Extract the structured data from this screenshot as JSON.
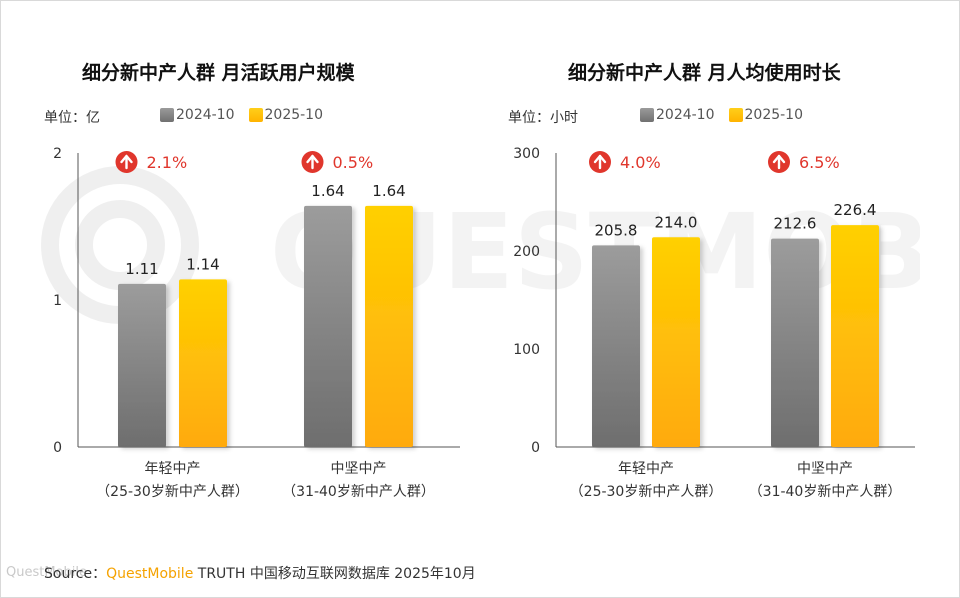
{
  "chart_data": [
    {
      "type": "bar",
      "title": "细分新中产人群 月活跃用户规模",
      "unit": "单位：亿",
      "ylim": [
        0,
        2
      ],
      "yticks": [
        "0",
        "1",
        "2"
      ],
      "categories": [
        {
          "line1": "年轻中产",
          "line2": "（25-30岁新中产人群）"
        },
        {
          "line1": "中坚中产",
          "line2": "（31-40岁新中产人群）"
        }
      ],
      "series": [
        {
          "name": "2024-10",
          "values": [
            1.11,
            1.64
          ],
          "labels": [
            "1.11",
            "1.64"
          ]
        },
        {
          "name": "2025-10",
          "values": [
            1.14,
            1.64
          ],
          "labels": [
            "1.14",
            "1.64"
          ]
        }
      ],
      "growth": [
        "2.1%",
        "0.5%"
      ]
    },
    {
      "type": "bar",
      "title": "细分新中产人群 月人均使用时长",
      "unit": "单位：小时",
      "ylim": [
        0,
        300
      ],
      "yticks": [
        "0",
        "100",
        "200",
        "300"
      ],
      "categories": [
        {
          "line1": "年轻中产",
          "line2": "（25-30岁新中产人群）"
        },
        {
          "line1": "中坚中产",
          "line2": "（31-40岁新中产人群）"
        }
      ],
      "series": [
        {
          "name": "2024-10",
          "values": [
            205.8,
            212.6
          ],
          "labels": [
            "205.8",
            "212.6"
          ]
        },
        {
          "name": "2025-10",
          "values": [
            214.0,
            226.4
          ],
          "labels": [
            "214.0",
            "226.4"
          ]
        }
      ],
      "growth": [
        "4.0%",
        "6.5%"
      ]
    }
  ],
  "colors": {
    "series_2024": "#8c8c8c",
    "series_2025": "#ffc400",
    "growth": "#e0362c"
  },
  "footer": {
    "prefix": "Source：",
    "brand": "QuestMobile",
    "suffix": " TRUTH 中国移动互联网数据库 2025年10月"
  },
  "watermark": {
    "text": "QUESTMOBILE",
    "corner": "QuestMobile"
  }
}
